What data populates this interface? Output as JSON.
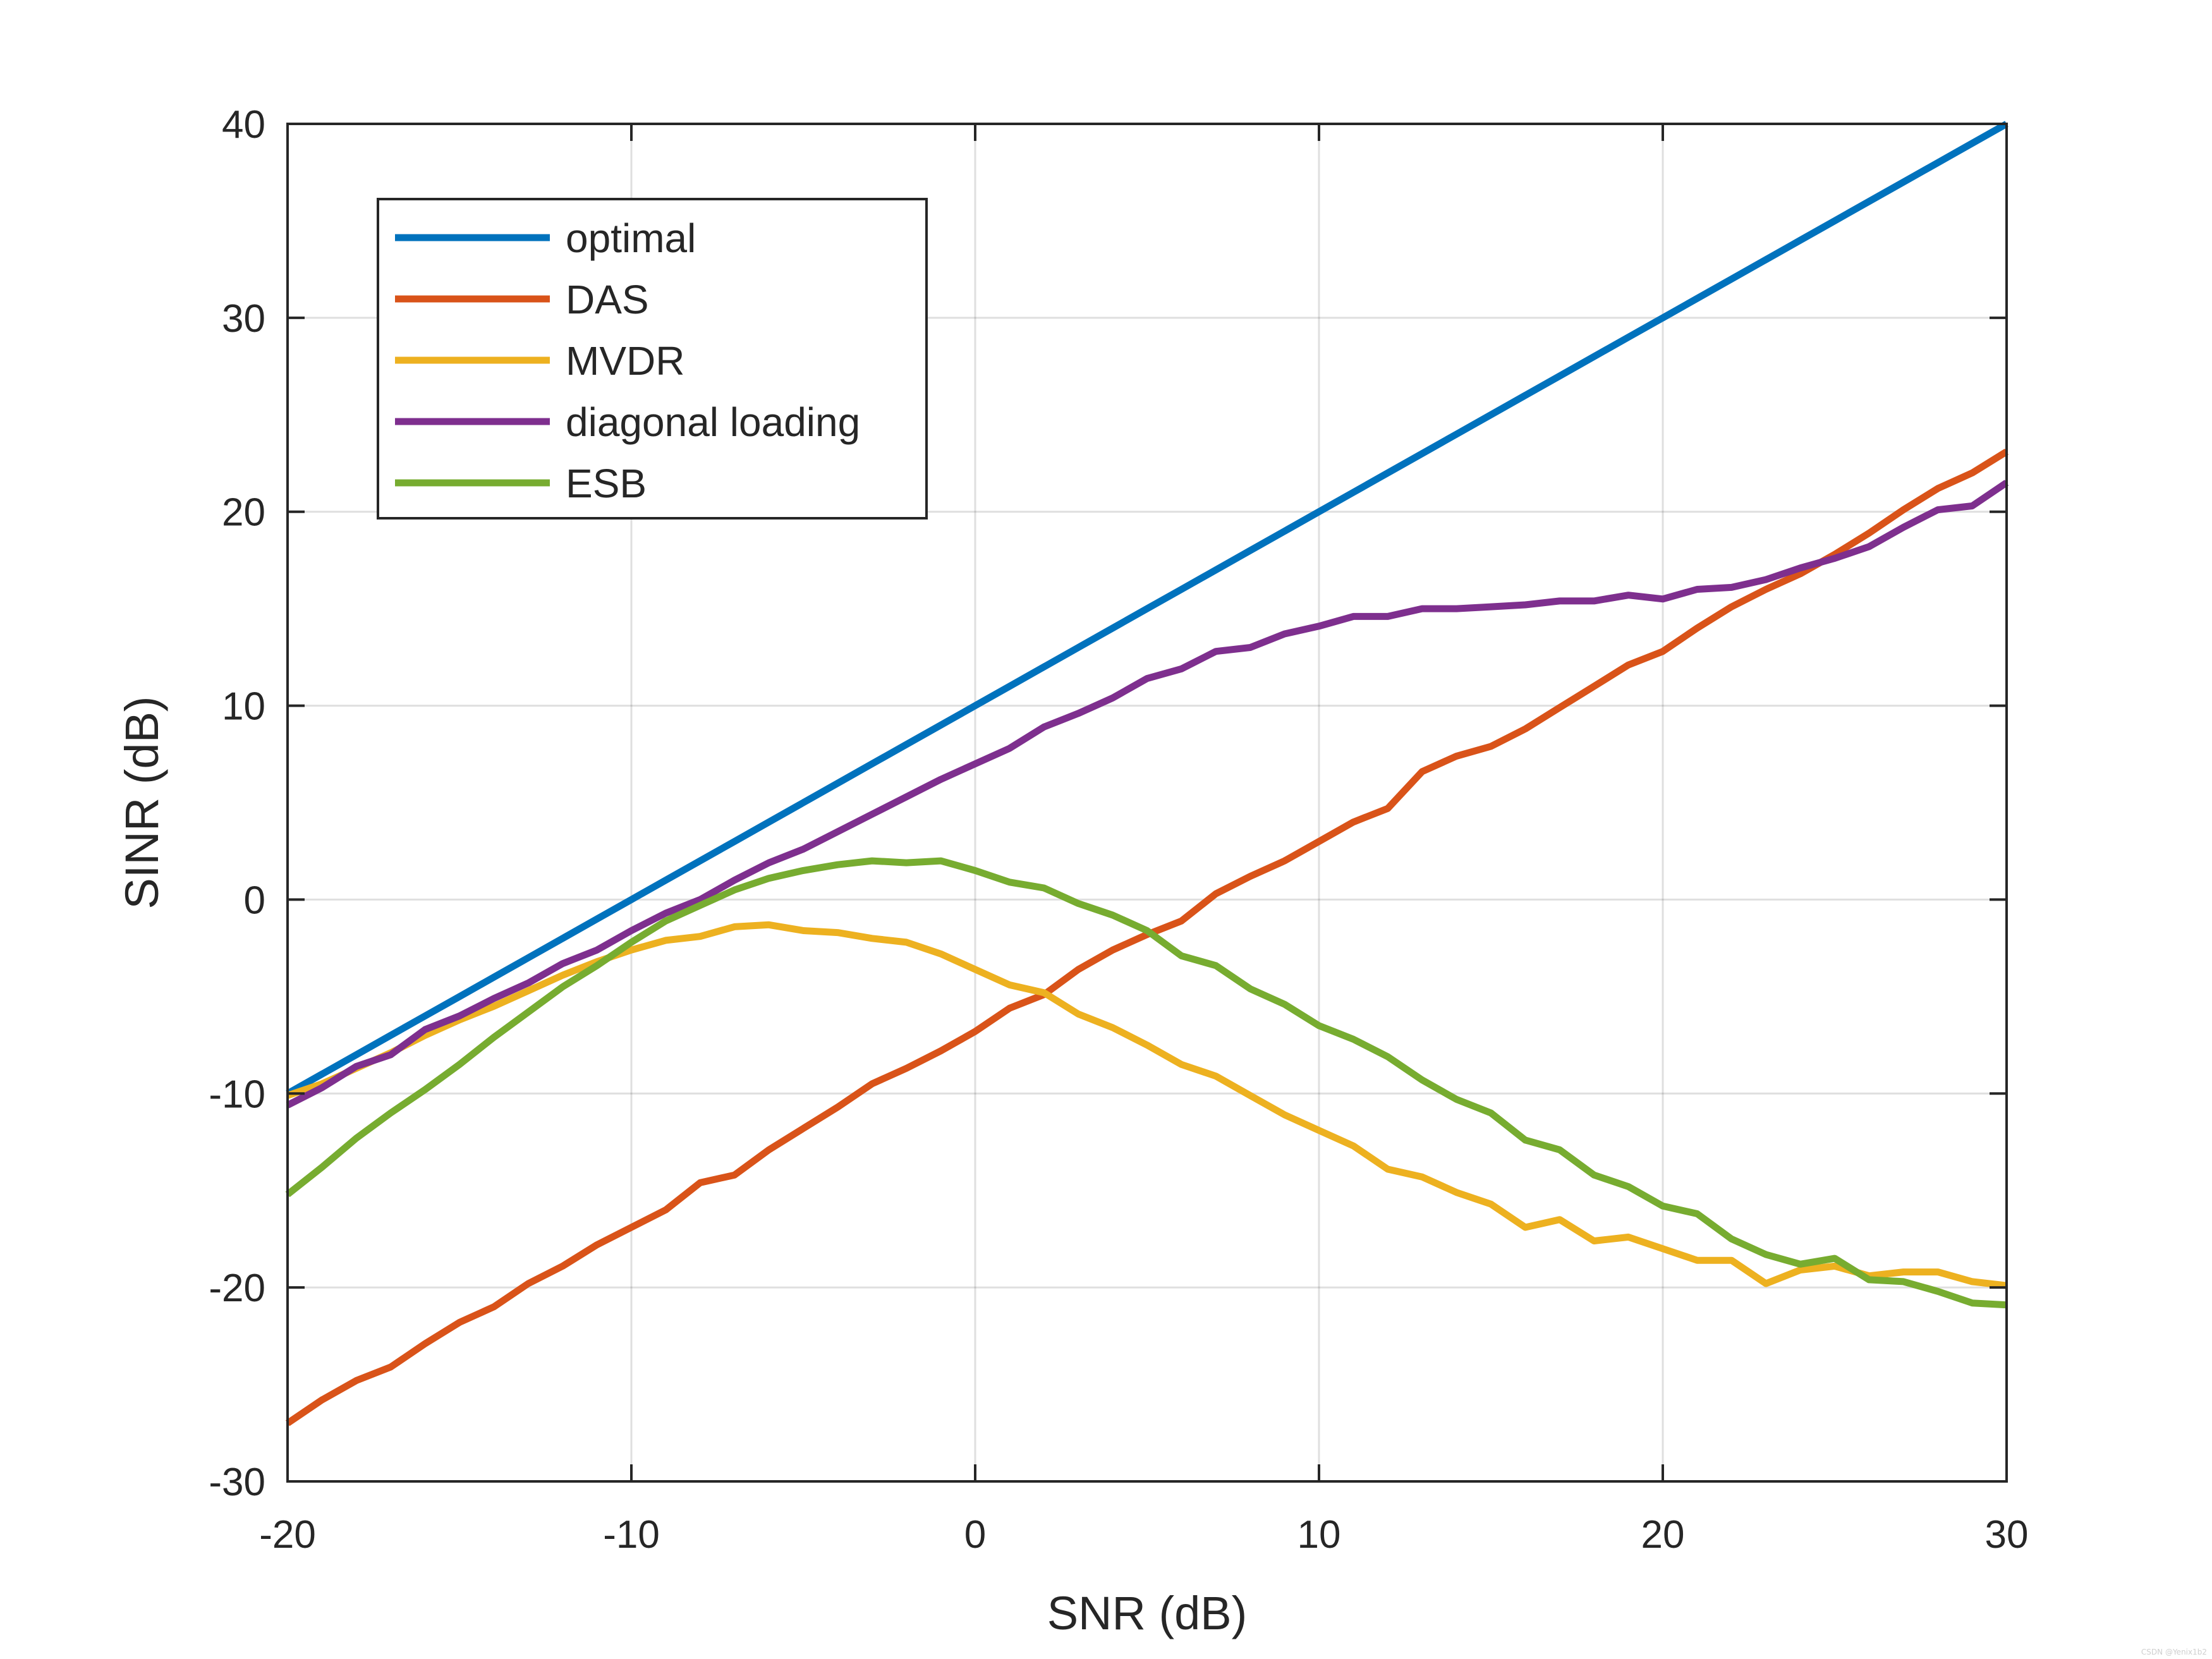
{
  "chart_data": {
    "type": "line",
    "title": "",
    "xlabel": "SNR (dB)",
    "ylabel": "SINR (dB)",
    "xlim": [
      -20,
      30
    ],
    "ylim": [
      -30,
      40
    ],
    "xticks": [
      -20,
      -10,
      0,
      10,
      20,
      30
    ],
    "yticks": [
      -30,
      -20,
      -10,
      0,
      10,
      20,
      30,
      40
    ],
    "xtick_labels": [
      "-20",
      "-10",
      "0",
      "10",
      "20",
      "30"
    ],
    "ytick_labels": [
      "-30",
      "-20",
      "-10",
      "0",
      "10",
      "20",
      "30",
      "40"
    ],
    "grid": true,
    "legend_position": "top-left",
    "x": [
      -20,
      -19,
      -18,
      -17,
      -16,
      -15,
      -14,
      -13,
      -12,
      -11,
      -10,
      -9,
      -8,
      -7,
      -6,
      -5,
      -4,
      -3,
      -2,
      -1,
      0,
      1,
      2,
      3,
      4,
      5,
      6,
      7,
      8,
      9,
      10,
      11,
      12,
      13,
      14,
      15,
      16,
      17,
      18,
      19,
      20,
      21,
      22,
      23,
      24,
      25,
      26,
      27,
      28,
      29,
      30
    ],
    "series": [
      {
        "name": "optimal",
        "color": "#0072BD",
        "values": [
          -10,
          -9,
          -8,
          -7,
          -6,
          -5,
          -4,
          -3,
          -2,
          -1,
          0,
          1,
          2,
          3,
          4,
          5,
          6,
          7,
          8,
          9,
          10,
          11,
          12,
          13,
          14,
          15,
          16,
          17,
          18,
          19,
          20,
          21,
          22,
          23,
          24,
          25,
          26,
          27,
          28,
          29,
          30,
          31,
          32,
          33,
          34,
          35,
          36,
          37,
          38,
          39,
          40
        ]
      },
      {
        "name": "DAS",
        "color": "#D95319",
        "values": [
          -27.0,
          -25.8,
          -24.8,
          -24.1,
          -22.9,
          -21.8,
          -21.0,
          -19.8,
          -18.9,
          -17.8,
          -16.9,
          -16.0,
          -14.6,
          -14.2,
          -12.9,
          -11.8,
          -10.7,
          -9.5,
          -8.7,
          -7.8,
          -6.8,
          -5.6,
          -4.9,
          -3.6,
          -2.6,
          -1.8,
          -1.1,
          0.3,
          1.2,
          2.0,
          3.0,
          4.0,
          4.7,
          6.6,
          7.4,
          7.9,
          8.8,
          9.9,
          11.0,
          12.1,
          12.8,
          14.0,
          15.1,
          16.0,
          16.8,
          17.8,
          18.9,
          20.1,
          21.2,
          22.0,
          23.1
        ]
      },
      {
        "name": "MVDR",
        "color": "#EDB120",
        "values": [
          -10.1,
          -9.5,
          -8.7,
          -7.9,
          -7.0,
          -6.2,
          -5.5,
          -4.7,
          -3.9,
          -3.2,
          -2.6,
          -2.1,
          -1.9,
          -1.4,
          -1.3,
          -1.6,
          -1.7,
          -2.0,
          -2.2,
          -2.8,
          -3.6,
          -4.4,
          -4.8,
          -5.9,
          -6.6,
          -7.5,
          -8.5,
          -9.1,
          -10.1,
          -11.1,
          -11.9,
          -12.7,
          -13.9,
          -14.3,
          -15.1,
          -15.7,
          -16.9,
          -16.5,
          -17.6,
          -17.4,
          -18.0,
          -18.6,
          -18.6,
          -19.8,
          -19.1,
          -18.9,
          -19.4,
          -19.2,
          -19.2,
          -19.7,
          -19.9
        ]
      },
      {
        "name": "diagonal loading",
        "color": "#7E2F8E",
        "values": [
          -10.6,
          -9.7,
          -8.6,
          -8.0,
          -6.7,
          -6.0,
          -5.1,
          -4.3,
          -3.3,
          -2.6,
          -1.6,
          -0.7,
          0.0,
          1.0,
          1.9,
          2.6,
          3.5,
          4.4,
          5.3,
          6.2,
          7.0,
          7.8,
          8.9,
          9.6,
          10.4,
          11.4,
          11.9,
          12.8,
          13.0,
          13.7,
          14.1,
          14.6,
          14.6,
          15.0,
          15.0,
          15.1,
          15.2,
          15.4,
          15.4,
          15.7,
          15.5,
          16.0,
          16.1,
          16.5,
          17.1,
          17.6,
          18.2,
          19.2,
          20.1,
          20.3,
          21.5
        ]
      },
      {
        "name": "ESB",
        "color": "#77AC30",
        "values": [
          -15.2,
          -13.8,
          -12.3,
          -11.0,
          -9.8,
          -8.5,
          -7.1,
          -5.8,
          -4.5,
          -3.4,
          -2.2,
          -1.1,
          -0.3,
          0.5,
          1.1,
          1.5,
          1.8,
          2.0,
          1.9,
          2.0,
          1.5,
          0.9,
          0.6,
          -0.2,
          -0.8,
          -1.6,
          -2.9,
          -3.4,
          -4.6,
          -5.4,
          -6.5,
          -7.2,
          -8.1,
          -9.3,
          -10.3,
          -11.0,
          -12.4,
          -12.9,
          -14.2,
          -14.8,
          -15.8,
          -16.2,
          -17.5,
          -18.3,
          -18.8,
          -18.5,
          -19.6,
          -19.7,
          -20.2,
          -20.8,
          -20.9
        ]
      }
    ]
  }
}
